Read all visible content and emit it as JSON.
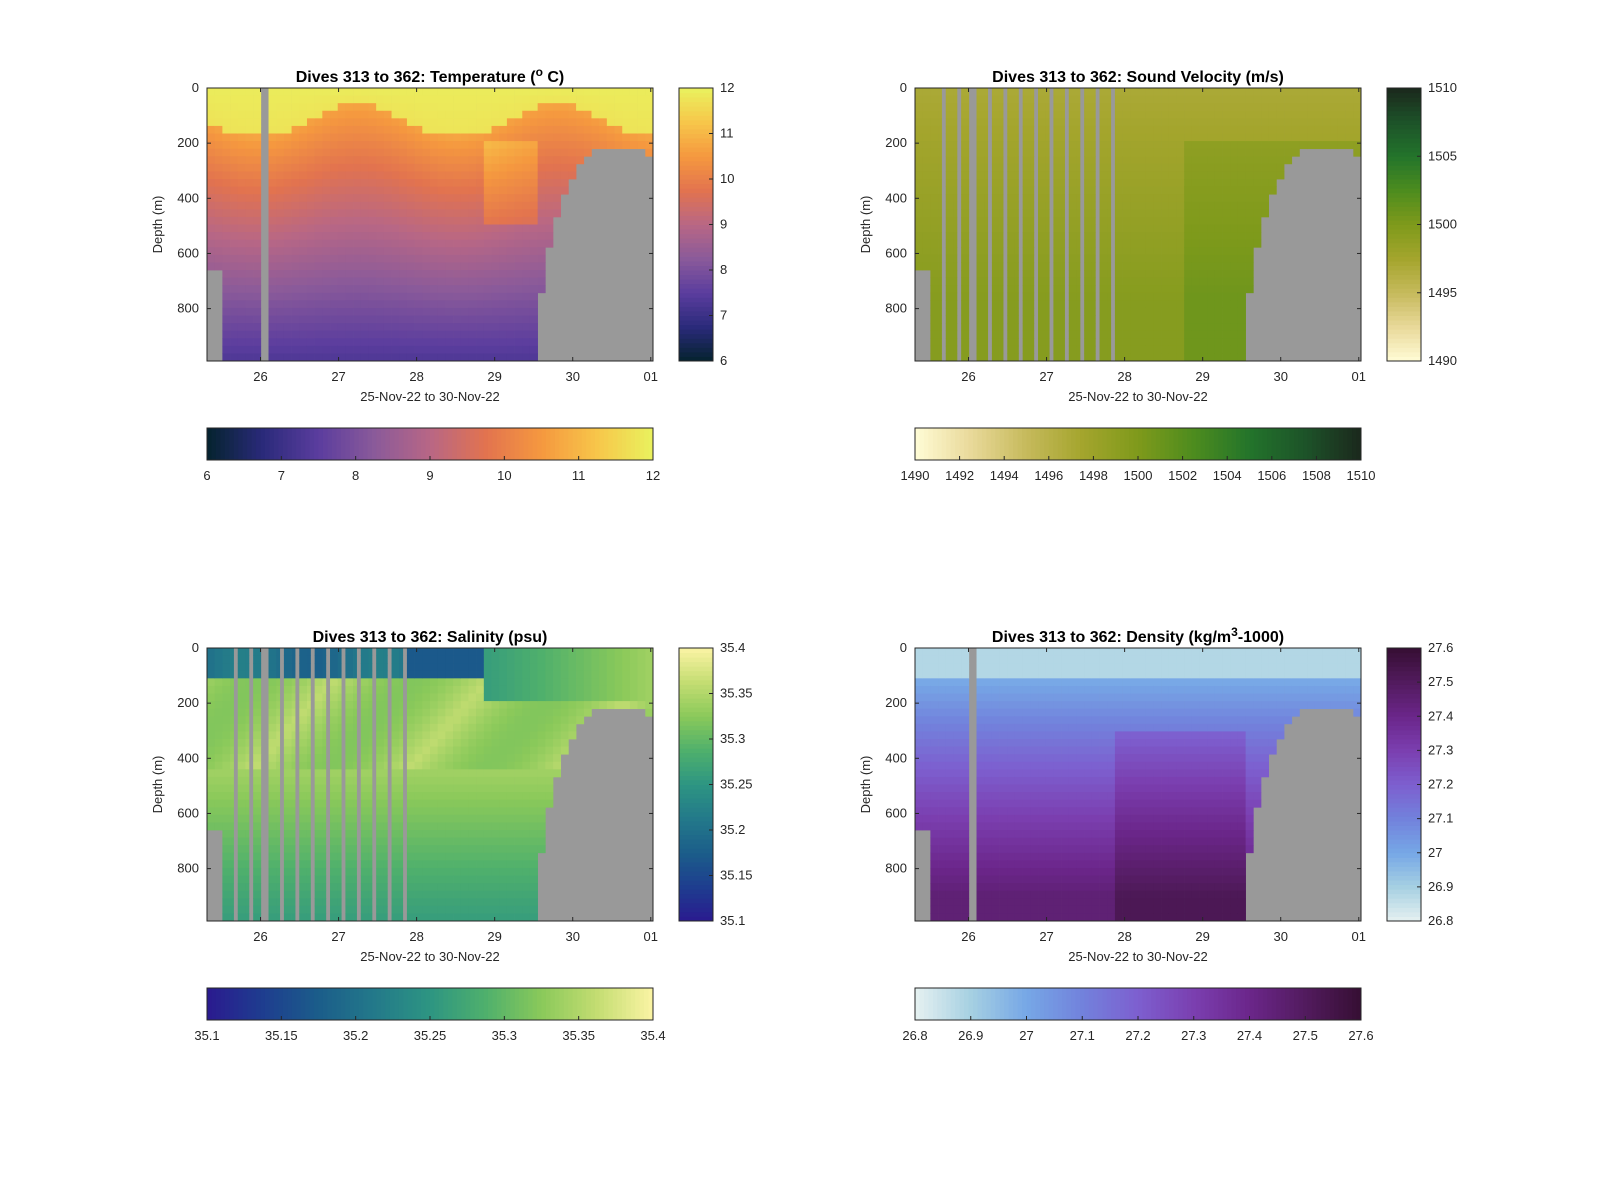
{
  "chart_data": [
    {
      "type": "heatmap",
      "title": "Dives 313 to 362: Temperature (",
      "title_sup": "o",
      "title_end": " C)",
      "xlabel": "25-Nov-22 to 30-Nov-22",
      "ylabel": "Depth (m)",
      "x_ticks": [
        "26",
        "27",
        "28",
        "29",
        "30",
        "01"
      ],
      "y_ticks": [
        "0",
        "200",
        "400",
        "600",
        "800"
      ],
      "ylim": [
        0,
        990
      ],
      "y_reversed": true,
      "colormap": "thermal",
      "clim": [
        6,
        12
      ],
      "cbar_ticks": [
        "6",
        "7",
        "8",
        "9",
        "10",
        "11",
        "12"
      ],
      "hbar_ticks": [
        "6",
        "7",
        "8",
        "9",
        "10",
        "11",
        "12"
      ],
      "surface_value": 11.9,
      "bottom_value": 7.3,
      "profile": "warm_core",
      "missing_color": "#999999"
    },
    {
      "type": "heatmap",
      "title": "Dives 313 to 362: Sound Velocity (m/s)",
      "xlabel": "25-Nov-22 to 30-Nov-22",
      "ylabel": "Depth (m)",
      "x_ticks": [
        "26",
        "27",
        "28",
        "29",
        "30",
        "01"
      ],
      "y_ticks": [
        "0",
        "200",
        "400",
        "600",
        "800"
      ],
      "ylim": [
        0,
        990
      ],
      "y_reversed": true,
      "colormap": "speed",
      "clim": [
        1490,
        1510
      ],
      "cbar_ticks": [
        "1490",
        "1495",
        "1500",
        "1505",
        "1510"
      ],
      "hbar_ticks": [
        "1490",
        "1492",
        "1494",
        "1496",
        "1498",
        "1500",
        "1502",
        "1504",
        "1506",
        "1508",
        "1510"
      ],
      "surface_value": 1497,
      "bottom_value": 1499.5,
      "profile": "gentle",
      "missing_color": "#999999"
    },
    {
      "type": "heatmap",
      "title": "Dives 313 to 362: Salinity (psu)",
      "xlabel": "25-Nov-22 to 30-Nov-22",
      "ylabel": "Depth (m)",
      "x_ticks": [
        "26",
        "27",
        "28",
        "29",
        "30",
        "01"
      ],
      "y_ticks": [
        "0",
        "200",
        "400",
        "600",
        "800"
      ],
      "ylim": [
        0,
        990
      ],
      "y_reversed": true,
      "colormap": "haline",
      "clim": [
        35.1,
        35.4
      ],
      "cbar_ticks": [
        "35.1",
        "35.15",
        "35.2",
        "35.25",
        "35.3",
        "35.35",
        "35.4"
      ],
      "hbar_ticks": [
        "35.1",
        "35.15",
        "35.2",
        "35.25",
        "35.3",
        "35.35",
        "35.4"
      ],
      "surface_value": 35.2,
      "bottom_value": 35.26,
      "profile": "subsurface_max",
      "missing_color": "#999999"
    },
    {
      "type": "heatmap",
      "title": "Dives 313 to 362: Density (kg/m",
      "title_sup": "3",
      "title_end": "-1000)",
      "xlabel": "25-Nov-22 to 30-Nov-22",
      "ylabel": "Depth (m)",
      "x_ticks": [
        "26",
        "27",
        "28",
        "29",
        "30",
        "01"
      ],
      "y_ticks": [
        "0",
        "200",
        "400",
        "600",
        "800"
      ],
      "ylim": [
        0,
        990
      ],
      "y_reversed": true,
      "colormap": "dense",
      "clim": [
        26.8,
        27.6
      ],
      "cbar_ticks": [
        "26.8",
        "26.9",
        "27",
        "27.1",
        "27.2",
        "27.3",
        "27.4",
        "27.5",
        "27.6"
      ],
      "hbar_ticks": [
        "26.8",
        "26.9",
        "27",
        "27.1",
        "27.2",
        "27.3",
        "27.4",
        "27.5",
        "27.6"
      ],
      "surface_value": 26.88,
      "bottom_value": 27.45,
      "profile": "increasing",
      "missing_color": "#999999"
    }
  ]
}
